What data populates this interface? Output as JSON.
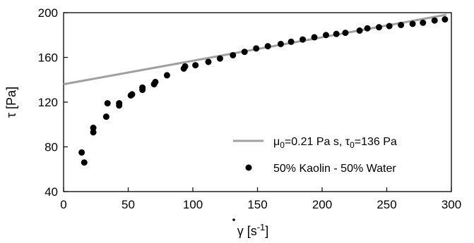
{
  "chart_data": {
    "type": "scatter",
    "xlabel": {
      "symbol": "γ",
      "unit_open": " [s",
      "exp": "-1",
      "unit_close": "]"
    },
    "ylabel": "τ [Pa]",
    "xlim": [
      0,
      300
    ],
    "ylim": [
      40,
      200
    ],
    "x_ticks": [
      0,
      50,
      100,
      150,
      200,
      250,
      300
    ],
    "y_ticks": [
      40,
      80,
      120,
      160,
      200
    ],
    "x_tick_labels": [
      "0",
      "50",
      "100",
      "150",
      "200",
      "250",
      "300"
    ],
    "y_tick_labels": [
      "40",
      "80",
      "120",
      "160",
      "200"
    ],
    "grid": false,
    "legend_position": "bottom-right",
    "fit_line": {
      "label": {
        "mu": "μ",
        "mu_sub": "0",
        "mu_val": "=0.21 Pa s, ",
        "tau": "τ",
        "tau_sub": "0",
        "tau_val": "=136 Pa"
      },
      "color": "#a0a0a0",
      "intercept": 136,
      "slope": 0.21,
      "x_range": [
        0,
        296
      ]
    },
    "series": [
      {
        "name": "50% Kaolin - 50% Water",
        "color": "#000000",
        "points": [
          [
            14,
            75
          ],
          [
            16,
            66
          ],
          [
            23,
            93
          ],
          [
            23,
            97
          ],
          [
            33,
            107
          ],
          [
            34,
            119
          ],
          [
            43,
            117
          ],
          [
            43,
            119
          ],
          [
            52,
            126
          ],
          [
            53,
            127
          ],
          [
            61,
            131
          ],
          [
            61,
            133
          ],
          [
            70,
            136
          ],
          [
            71,
            138
          ],
          [
            80,
            144
          ],
          [
            93,
            150
          ],
          [
            94,
            152
          ],
          [
            102,
            153
          ],
          [
            112,
            156
          ],
          [
            121,
            159
          ],
          [
            131,
            162
          ],
          [
            140,
            165
          ],
          [
            149,
            168
          ],
          [
            158,
            170
          ],
          [
            168,
            172
          ],
          [
            176,
            174
          ],
          [
            185,
            176
          ],
          [
            194,
            178
          ],
          [
            203,
            180
          ],
          [
            211,
            181
          ],
          [
            218,
            182
          ],
          [
            229,
            184
          ],
          [
            235,
            186
          ],
          [
            244,
            187
          ],
          [
            252,
            188
          ],
          [
            261,
            189
          ],
          [
            270,
            190
          ],
          [
            278,
            191
          ],
          [
            287,
            193
          ],
          [
            295,
            194
          ]
        ]
      }
    ]
  }
}
